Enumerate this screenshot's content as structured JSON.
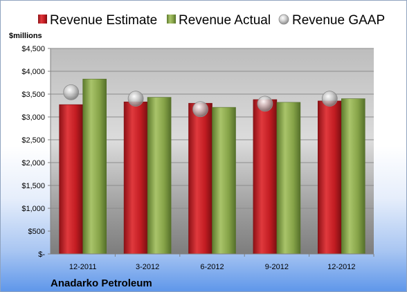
{
  "chart_data": {
    "type": "bar",
    "title": "",
    "company": "Anadarko Petroleum",
    "unit_label": "$millions",
    "categories": [
      "12-2011",
      "3-2012",
      "6-2012",
      "9-2012",
      "12-2012"
    ],
    "series": [
      {
        "name": "Revenue Estimate",
        "kind": "bar",
        "color": "#cc1f24",
        "values": [
          3270,
          3330,
          3300,
          3380,
          3350
        ]
      },
      {
        "name": "Revenue Actual",
        "kind": "bar",
        "color": "#8fab4e",
        "values": [
          3830,
          3430,
          3210,
          3320,
          3400
        ]
      },
      {
        "name": "Revenue GAAP",
        "kind": "marker",
        "color": "#b9b9b9",
        "values": [
          3540,
          3400,
          3170,
          3290,
          3400
        ]
      }
    ],
    "ylim": [
      0,
      4500
    ],
    "yticks": [
      0,
      500,
      1000,
      1500,
      2000,
      2500,
      3000,
      3500,
      4000,
      4500
    ],
    "ytick_labels": [
      "$-",
      "$500",
      "$1,000",
      "$1,500",
      "$2,000",
      "$2,500",
      "$3,000",
      "$3,500",
      "$4,000",
      "$4,500"
    ],
    "grid": true,
    "legend_position": "top"
  }
}
